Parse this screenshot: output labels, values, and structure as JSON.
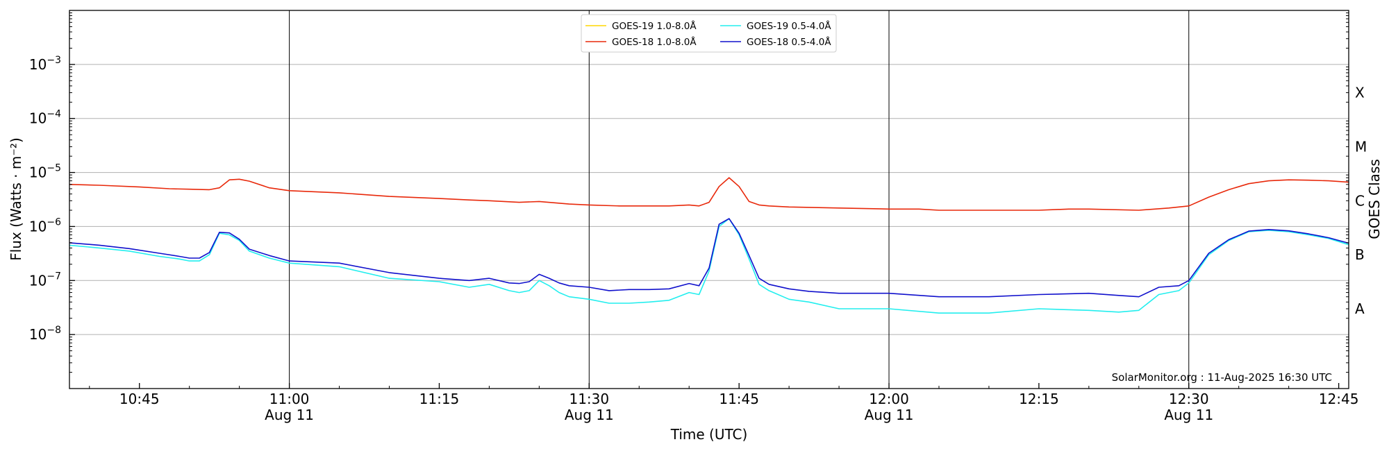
{
  "chart_data": {
    "type": "line",
    "title": "",
    "xlabel": "Time (UTC)",
    "ylabel": "Flux (Watts · m⁻²)",
    "right_ylabel": "GOES Class",
    "y_scale": "log",
    "ylim": [
      1e-09,
      0.01
    ],
    "xlim": [
      "2025-08-11T10:38",
      "2025-08-11T12:46"
    ],
    "grid": "horizontal at decades and vertical at half-hours",
    "legend_position": "top-center",
    "annotation": "SolarMonitor.org : 11-Aug-2025 16:30 UTC",
    "y_ticks": [
      {
        "value": 1e-08,
        "mantissa": "10",
        "exp": "−8"
      },
      {
        "value": 1e-07,
        "mantissa": "10",
        "exp": "−7"
      },
      {
        "value": 1e-06,
        "mantissa": "10",
        "exp": "−6"
      },
      {
        "value": 1e-05,
        "mantissa": "10",
        "exp": "−5"
      },
      {
        "value": 0.0001,
        "mantissa": "10",
        "exp": "−4"
      },
      {
        "value": 0.001,
        "mantissa": "10",
        "exp": "−3"
      }
    ],
    "x_ticks": [
      {
        "time": "10:45",
        "label": "10:45",
        "sub": ""
      },
      {
        "time": "11:00",
        "label": "11:00",
        "sub": "Aug 11"
      },
      {
        "time": "11:15",
        "label": "11:15",
        "sub": ""
      },
      {
        "time": "11:30",
        "label": "11:30",
        "sub": "Aug 11"
      },
      {
        "time": "11:45",
        "label": "11:45",
        "sub": ""
      },
      {
        "time": "12:00",
        "label": "12:00",
        "sub": "Aug 11"
      },
      {
        "time": "12:15",
        "label": "12:15",
        "sub": ""
      },
      {
        "time": "12:30",
        "label": "12:30",
        "sub": "Aug 11"
      },
      {
        "time": "12:45",
        "label": "12:45",
        "sub": ""
      }
    ],
    "goes_classes": [
      {
        "label": "A",
        "value": 3e-08
      },
      {
        "label": "B",
        "value": 3e-07
      },
      {
        "label": "C",
        "value": 3e-06
      },
      {
        "label": "M",
        "value": 3e-05
      },
      {
        "label": "X",
        "value": 0.0003
      }
    ],
    "series": [
      {
        "name": "GOES-19 1.0-8.0Å",
        "color": "#ffd700",
        "x": [],
        "y": []
      },
      {
        "name": "GOES-18 1.0-8.0Å",
        "color": "#e8280a",
        "x": [
          "10:38",
          "10:41",
          "10:45",
          "10:48",
          "10:50",
          "10:52",
          "10:53",
          "10:54",
          "10:55",
          "10:56",
          "10:58",
          "11:00",
          "11:05",
          "11:10",
          "11:15",
          "11:18",
          "11:20",
          "11:23",
          "11:25",
          "11:28",
          "11:30",
          "11:33",
          "11:35",
          "11:38",
          "11:40",
          "11:41",
          "11:42",
          "11:43",
          "11:44",
          "11:45",
          "11:46",
          "11:47",
          "11:48",
          "11:50",
          "11:55",
          "12:00",
          "12:03",
          "12:05",
          "12:10",
          "12:15",
          "12:18",
          "12:20",
          "12:25",
          "12:28",
          "12:30",
          "12:32",
          "12:34",
          "12:36",
          "12:38",
          "12:40",
          "12:42",
          "12:44",
          "12:46"
        ],
        "y": [
          6e-06,
          5.8e-06,
          5.4e-06,
          5e-06,
          4.9e-06,
          4.8e-06,
          5.2e-06,
          7.3e-06,
          7.5e-06,
          6.9e-06,
          5.2e-06,
          4.6e-06,
          4.2e-06,
          3.6e-06,
          3.3e-06,
          3.1e-06,
          3e-06,
          2.8e-06,
          2.9e-06,
          2.6e-06,
          2.5e-06,
          2.4e-06,
          2.4e-06,
          2.4e-06,
          2.5e-06,
          2.4e-06,
          2.8e-06,
          5.5e-06,
          8e-06,
          5.5e-06,
          2.9e-06,
          2.5e-06,
          2.4e-06,
          2.3e-06,
          2.2e-06,
          2.1e-06,
          2.1e-06,
          2e-06,
          2e-06,
          2e-06,
          2.1e-06,
          2.1e-06,
          2e-06,
          2.2e-06,
          2.4e-06,
          3.5e-06,
          4.8e-06,
          6.2e-06,
          7e-06,
          7.3e-06,
          7.2e-06,
          7e-06,
          6.6e-06
        ]
      },
      {
        "name": "GOES-19 0.5-4.0Å",
        "color": "#22eeee",
        "x": [
          "10:38",
          "10:41",
          "10:44",
          "10:47",
          "10:49",
          "10:50",
          "10:51",
          "10:52",
          "10:53",
          "10:54",
          "10:55",
          "10:56",
          "10:58",
          "11:00",
          "11:05",
          "11:10",
          "11:15",
          "11:18",
          "11:20",
          "11:22",
          "11:23",
          "11:24",
          "11:25",
          "11:26",
          "11:27",
          "11:28",
          "11:30",
          "11:32",
          "11:34",
          "11:36",
          "11:38",
          "11:40",
          "11:41",
          "11:42",
          "11:43",
          "11:44",
          "11:45",
          "11:46",
          "11:47",
          "11:48",
          "11:50",
          "11:52",
          "11:55",
          "12:00",
          "12:05",
          "12:10",
          "12:15",
          "12:20",
          "12:23",
          "12:25",
          "12:27",
          "12:29",
          "12:30",
          "12:32",
          "12:34",
          "12:36",
          "12:38",
          "12:40",
          "12:42",
          "12:44",
          "12:46"
        ],
        "y": [
          4.5e-07,
          4e-07,
          3.5e-07,
          2.8e-07,
          2.5e-07,
          2.3e-07,
          2.3e-07,
          3e-07,
          7.5e-07,
          7e-07,
          5.5e-07,
          3.5e-07,
          2.6e-07,
          2.1e-07,
          1.8e-07,
          1.1e-07,
          9.5e-08,
          7.5e-08,
          8.5e-08,
          6.5e-08,
          6e-08,
          6.5e-08,
          1e-07,
          8e-08,
          6e-08,
          5e-08,
          4.5e-08,
          3.8e-08,
          3.8e-08,
          4e-08,
          4.3e-08,
          6e-08,
          5.5e-08,
          1.5e-07,
          1e-06,
          1.4e-06,
          7e-07,
          2.5e-07,
          8.5e-08,
          6.5e-08,
          4.5e-08,
          4e-08,
          3e-08,
          3e-08,
          2.5e-08,
          2.5e-08,
          3e-08,
          2.8e-08,
          2.6e-08,
          2.8e-08,
          5.5e-08,
          6.5e-08,
          9e-08,
          3e-07,
          5.5e-07,
          8e-07,
          8.5e-07,
          8e-07,
          7e-07,
          6e-07,
          4.6e-07
        ]
      },
      {
        "name": "GOES-18 0.5-4.0Å",
        "color": "#1010cc",
        "x": [
          "10:38",
          "10:41",
          "10:44",
          "10:47",
          "10:49",
          "10:50",
          "10:51",
          "10:52",
          "10:53",
          "10:54",
          "10:55",
          "10:56",
          "10:58",
          "11:00",
          "11:05",
          "11:10",
          "11:15",
          "11:18",
          "11:20",
          "11:22",
          "11:23",
          "11:24",
          "11:25",
          "11:26",
          "11:27",
          "11:28",
          "11:30",
          "11:32",
          "11:34",
          "11:36",
          "11:38",
          "11:40",
          "11:41",
          "11:42",
          "11:43",
          "11:44",
          "11:45",
          "11:46",
          "11:47",
          "11:48",
          "11:50",
          "11:52",
          "11:55",
          "12:00",
          "12:05",
          "12:10",
          "12:15",
          "12:20",
          "12:23",
          "12:25",
          "12:27",
          "12:29",
          "12:30",
          "12:32",
          "12:34",
          "12:36",
          "12:38",
          "12:40",
          "12:42",
          "12:44",
          "12:46"
        ],
        "y": [
          5e-07,
          4.5e-07,
          3.9e-07,
          3.2e-07,
          2.8e-07,
          2.6e-07,
          2.6e-07,
          3.3e-07,
          7.8e-07,
          7.6e-07,
          5.8e-07,
          3.8e-07,
          2.9e-07,
          2.3e-07,
          2.1e-07,
          1.4e-07,
          1.1e-07,
          1e-07,
          1.1e-07,
          9e-08,
          8.8e-08,
          9.5e-08,
          1.3e-07,
          1.1e-07,
          9e-08,
          8e-08,
          7.5e-08,
          6.5e-08,
          6.8e-08,
          6.8e-08,
          7e-08,
          8.8e-08,
          8e-08,
          1.7e-07,
          1.1e-06,
          1.4e-06,
          7.5e-07,
          2.9e-07,
          1.1e-07,
          8.5e-08,
          7e-08,
          6.3e-08,
          5.8e-08,
          5.8e-08,
          5e-08,
          5e-08,
          5.5e-08,
          5.8e-08,
          5.3e-08,
          5e-08,
          7.5e-08,
          8e-08,
          1e-07,
          3.2e-07,
          5.7e-07,
          8.2e-07,
          8.8e-07,
          8.3e-07,
          7.3e-07,
          6.2e-07,
          4.9e-07
        ]
      }
    ]
  }
}
